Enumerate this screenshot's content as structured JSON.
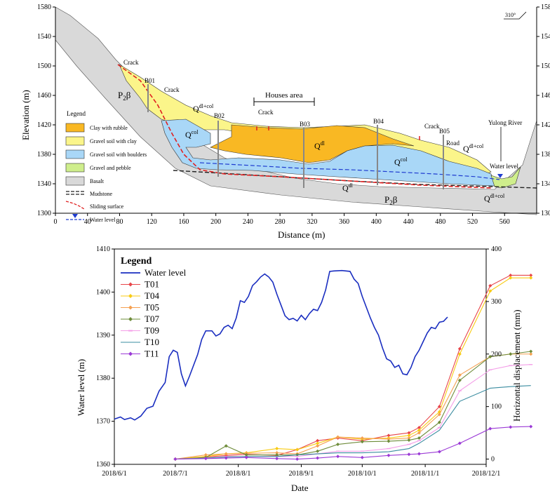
{
  "profile": {
    "xlabel": "Distance (m)",
    "ylabel": "Elevation (m)",
    "x_ticks": [
      "0",
      "40",
      "80",
      "120",
      "160",
      "200",
      "240",
      "280",
      "320",
      "360",
      "400",
      "440",
      "480",
      "520",
      "560"
    ],
    "y_ticks": [
      "1300",
      "1340",
      "1380",
      "1420",
      "1460",
      "1500",
      "1540",
      "1580"
    ],
    "right_ticks": [
      "1300",
      "1340",
      "1380",
      "1420",
      "1460",
      "1500",
      "1540",
      "1580"
    ],
    "orientation": "310°",
    "legend_title": "Legend",
    "legend": [
      {
        "label": "Clay with rubble",
        "color": "#f9b823"
      },
      {
        "label": "Gravel soil with clay",
        "color": "#fbf58a"
      },
      {
        "label": "Gravel soil with boulders",
        "color": "#a9d7f7"
      },
      {
        "label": "Gravel and pebble",
        "color": "#cfee8c"
      },
      {
        "label": "Basalt",
        "color": "#d9d9d9"
      },
      {
        "label": "Mudstone"
      },
      {
        "label": "Sliding surface"
      },
      {
        "label": "Water level"
      }
    ],
    "boreholes": [
      "B01",
      "B02",
      "B03",
      "B04",
      "B05"
    ],
    "annotations": {
      "crack": "Crack",
      "houses": "Houses area",
      "road": "Road",
      "river": "Yulong River",
      "water": "Water level",
      "p2b": "P",
      "p2b_sub": "2",
      "p2b_beta": "β",
      "q": "Q",
      "dl_col": "dl+col",
      "col": "col",
      "dl": "dl"
    }
  },
  "chart_data": {
    "type": "line",
    "title": "",
    "xlabel": "Date",
    "ylabel": "Water level (m)",
    "y2label": "Horizontal displacement (mm)",
    "x_ticks": [
      "2018/6/1",
      "2018/7/1",
      "2018/8/1",
      "2018/9/1",
      "2018/10/1",
      "2018/11/1",
      "2018/12/1"
    ],
    "ylim": [
      1360,
      1410
    ],
    "y_ticks": [
      "1360",
      "1370",
      "1380",
      "1390",
      "1400",
      "1410"
    ],
    "y2lim": [
      -10,
      400
    ],
    "y2_ticks": [
      "0",
      "100",
      "200",
      "300",
      "400"
    ],
    "legend_title": "Legend",
    "legend_position": "top-left",
    "water_level": {
      "name": "Water level",
      "color": "#1a2ec0",
      "points": [
        [
          0,
          1370.5
        ],
        [
          3,
          1371
        ],
        [
          5,
          1370.4
        ],
        [
          8,
          1370.8
        ],
        [
          10,
          1370.3
        ],
        [
          13,
          1371.2
        ],
        [
          16,
          1373
        ],
        [
          19,
          1373.5
        ],
        [
          22,
          1377
        ],
        [
          25,
          1379
        ],
        [
          27,
          1385
        ],
        [
          29,
          1386.5
        ],
        [
          31,
          1386
        ],
        [
          33,
          1381
        ],
        [
          35,
          1378.2
        ],
        [
          37,
          1380.5
        ],
        [
          39,
          1383
        ],
        [
          41,
          1385.5
        ],
        [
          43,
          1389
        ],
        [
          45,
          1391
        ],
        [
          48,
          1391
        ],
        [
          50,
          1389.8
        ],
        [
          52,
          1390.3
        ],
        [
          54,
          1391.8
        ],
        [
          56,
          1392.3
        ],
        [
          58,
          1391.5
        ],
        [
          60,
          1394
        ],
        [
          62,
          1398
        ],
        [
          64,
          1397.6
        ],
        [
          66,
          1399
        ],
        [
          68,
          1401.5
        ],
        [
          70,
          1402.4
        ],
        [
          72,
          1403.5
        ],
        [
          74,
          1404.2
        ],
        [
          76,
          1403.5
        ],
        [
          78,
          1402.3
        ],
        [
          80,
          1399.5
        ],
        [
          82,
          1397
        ],
        [
          84,
          1394.5
        ],
        [
          86,
          1393.6
        ],
        [
          88,
          1393.9
        ],
        [
          90,
          1393.3
        ],
        [
          92,
          1394.6
        ],
        [
          94,
          1393.6
        ],
        [
          96,
          1395
        ],
        [
          98,
          1396
        ],
        [
          100,
          1395.7
        ],
        [
          102,
          1397.6
        ],
        [
          104,
          1400.5
        ],
        [
          106,
          1404.8
        ],
        [
          108,
          1404.9
        ],
        [
          112,
          1405
        ],
        [
          116,
          1404.8
        ],
        [
          118,
          1403
        ],
        [
          120,
          1402
        ],
        [
          122,
          1399
        ],
        [
          124,
          1396.5
        ],
        [
          126,
          1394
        ],
        [
          128,
          1391.8
        ],
        [
          130,
          1390
        ],
        [
          132,
          1387
        ],
        [
          134,
          1384.5
        ],
        [
          136,
          1384
        ],
        [
          138,
          1382.5
        ],
        [
          140,
          1383
        ],
        [
          142,
          1381
        ],
        [
          144,
          1380.8
        ],
        [
          146,
          1382.5
        ],
        [
          148,
          1385
        ],
        [
          150,
          1386.5
        ],
        [
          152,
          1388.5
        ],
        [
          154,
          1390.5
        ],
        [
          156,
          1391.8
        ],
        [
          158,
          1391.5
        ],
        [
          160,
          1393
        ],
        [
          162,
          1393.2
        ],
        [
          164,
          1394.2
        ]
      ]
    },
    "series": [
      {
        "name": "T01",
        "color": "#e8454a",
        "marker": "diamond",
        "points": [
          [
            30,
            0
          ],
          [
            45,
            4
          ],
          [
            55,
            7
          ],
          [
            65,
            9
          ],
          [
            80,
            7
          ],
          [
            90,
            18
          ],
          [
            100,
            35
          ],
          [
            110,
            40
          ],
          [
            122,
            35
          ],
          [
            135,
            45
          ],
          [
            145,
            50
          ],
          [
            150,
            60
          ],
          [
            160,
            100
          ],
          [
            170,
            210
          ],
          [
            185,
            330
          ],
          [
            195,
            350
          ],
          [
            205,
            350
          ]
        ]
      },
      {
        "name": "T04",
        "color": "#f8cb12",
        "marker": "diamond",
        "points": [
          [
            30,
            0
          ],
          [
            45,
            5
          ],
          [
            55,
            10
          ],
          [
            65,
            12
          ],
          [
            80,
            20
          ],
          [
            90,
            18
          ],
          [
            100,
            30
          ],
          [
            110,
            42
          ],
          [
            122,
            38
          ],
          [
            135,
            40
          ],
          [
            145,
            45
          ],
          [
            150,
            55
          ],
          [
            160,
            90
          ],
          [
            170,
            200
          ],
          [
            185,
            320
          ],
          [
            195,
            345
          ],
          [
            205,
            345
          ]
        ]
      },
      {
        "name": "T05",
        "color": "#f5a050",
        "marker": "diamond",
        "points": [
          [
            30,
            0
          ],
          [
            45,
            8
          ],
          [
            55,
            10
          ],
          [
            65,
            11
          ],
          [
            80,
            12
          ],
          [
            90,
            10
          ],
          [
            100,
            25
          ],
          [
            110,
            42
          ],
          [
            122,
            40
          ],
          [
            135,
            38
          ],
          [
            145,
            40
          ],
          [
            150,
            50
          ],
          [
            160,
            85
          ],
          [
            170,
            160
          ],
          [
            185,
            195
          ],
          [
            195,
            200
          ],
          [
            205,
            200
          ]
        ]
      },
      {
        "name": "T07",
        "color": "#6e8c3a",
        "marker": "diamond",
        "points": [
          [
            30,
            0
          ],
          [
            45,
            3
          ],
          [
            55,
            25
          ],
          [
            65,
            8
          ],
          [
            80,
            8
          ],
          [
            90,
            8
          ],
          [
            100,
            15
          ],
          [
            110,
            28
          ],
          [
            122,
            33
          ],
          [
            135,
            34
          ],
          [
            145,
            36
          ],
          [
            150,
            40
          ],
          [
            160,
            70
          ],
          [
            170,
            150
          ],
          [
            185,
            195
          ],
          [
            195,
            200
          ],
          [
            205,
            205
          ]
        ]
      },
      {
        "name": "T09",
        "color": "#f49ee8",
        "marker": "dash",
        "points": [
          [
            30,
            0
          ],
          [
            45,
            2
          ],
          [
            55,
            5
          ],
          [
            65,
            5
          ],
          [
            80,
            5
          ],
          [
            90,
            5
          ],
          [
            100,
            10
          ],
          [
            110,
            15
          ],
          [
            122,
            15
          ],
          [
            135,
            20
          ],
          [
            145,
            28
          ],
          [
            150,
            35
          ],
          [
            160,
            60
          ],
          [
            170,
            130
          ],
          [
            185,
            170
          ],
          [
            195,
            178
          ],
          [
            205,
            180
          ]
        ]
      },
      {
        "name": "T10",
        "color": "#3a8ca0",
        "marker": "none",
        "points": [
          [
            30,
            0
          ],
          [
            45,
            2
          ],
          [
            55,
            4
          ],
          [
            65,
            5
          ],
          [
            80,
            5
          ],
          [
            90,
            8
          ],
          [
            100,
            10
          ],
          [
            110,
            12
          ],
          [
            122,
            12
          ],
          [
            135,
            14
          ],
          [
            145,
            20
          ],
          [
            150,
            30
          ],
          [
            160,
            55
          ],
          [
            170,
            110
          ],
          [
            185,
            135
          ],
          [
            195,
            138
          ],
          [
            205,
            140
          ]
        ]
      },
      {
        "name": "T11",
        "color": "#9b3ad6",
        "marker": "diamond",
        "points": [
          [
            30,
            0
          ],
          [
            45,
            1
          ],
          [
            55,
            2
          ],
          [
            65,
            3
          ],
          [
            80,
            1
          ],
          [
            90,
            0
          ],
          [
            100,
            2
          ],
          [
            110,
            5
          ],
          [
            122,
            3
          ],
          [
            135,
            7
          ],
          [
            145,
            9
          ],
          [
            150,
            10
          ],
          [
            160,
            14
          ],
          [
            170,
            30
          ],
          [
            185,
            58
          ],
          [
            195,
            61
          ],
          [
            205,
            62
          ]
        ]
      }
    ]
  }
}
